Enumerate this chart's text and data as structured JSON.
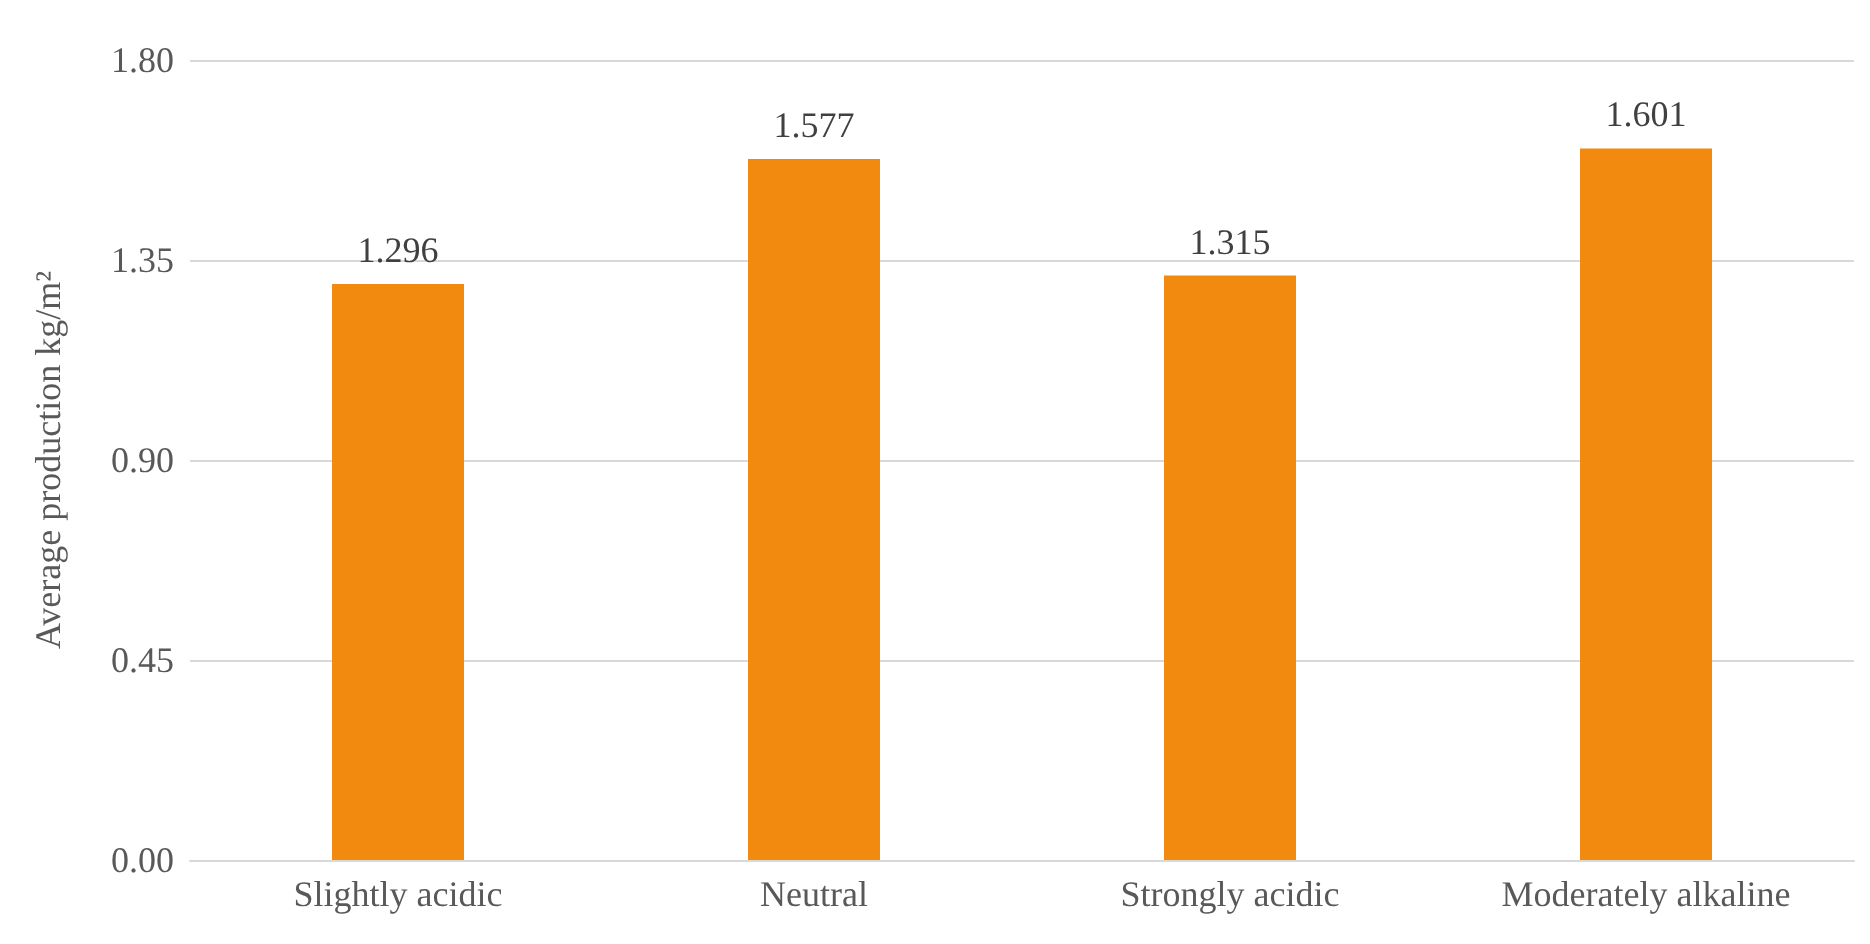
{
  "chart_data": {
    "type": "bar",
    "ylabel": "Average production kg/m²",
    "categories": [
      "Slightly acidic",
      "Neutral",
      "Strongly acidic",
      "Moderately alkaline"
    ],
    "values": [
      1.296,
      1.577,
      1.315,
      1.601
    ],
    "color": "#f28a0f",
    "ylim": [
      0,
      1.8
    ],
    "yticks": [
      {
        "value": 0,
        "label": "0.00"
      },
      {
        "value": 0.45,
        "label": "0.45"
      },
      {
        "value": 0.9,
        "label": "0.90"
      },
      {
        "value": 1.35,
        "label": "1.35"
      },
      {
        "value": 1.8,
        "label": "1.80"
      }
    ],
    "grid": "y",
    "data_labels": true
  }
}
